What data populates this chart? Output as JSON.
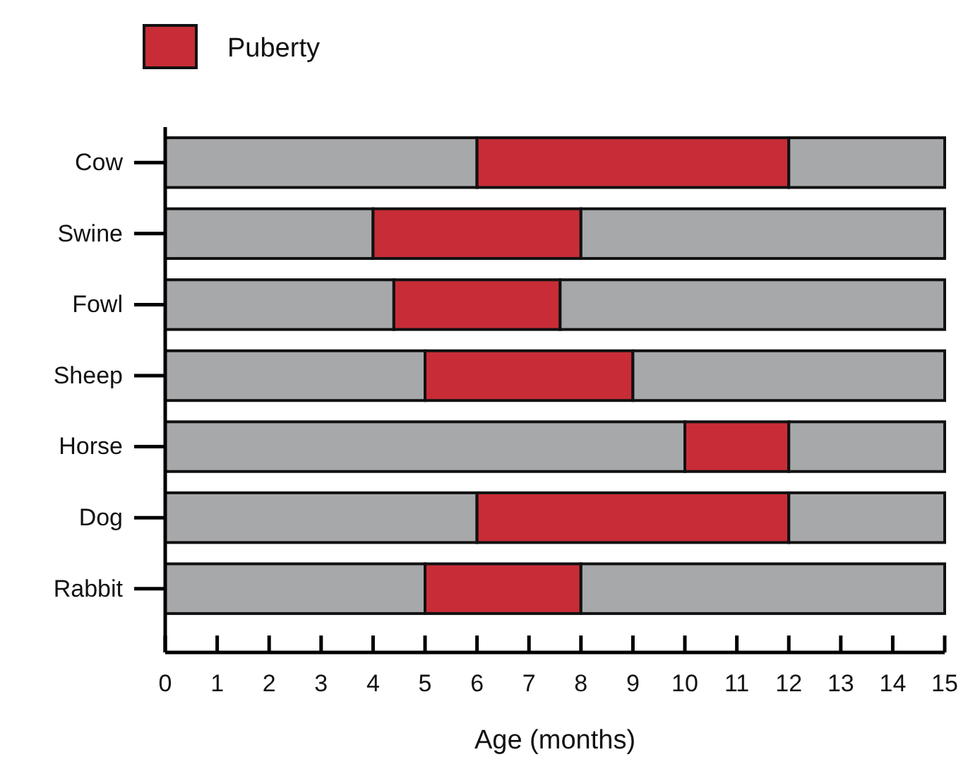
{
  "chart_data": {
    "type": "bar",
    "orientation": "horizontal",
    "stacked": true,
    "xlabel": "Age (months)",
    "categories": [
      "Cow",
      "Swine",
      "Fowl",
      "Sheep",
      "Horse",
      "Dog",
      "Rabbit"
    ],
    "series": [
      {
        "color": "#a7a8aa",
        "values": [
          6,
          4,
          4.4,
          5,
          10,
          6,
          5
        ]
      },
      {
        "name": "Puberty",
        "color": "#c82d37",
        "values": [
          6,
          4,
          3.2,
          4,
          2,
          6,
          3
        ]
      },
      {
        "color": "#a7a8aa",
        "values": [
          3,
          7,
          7.4,
          6,
          3,
          3,
          7
        ]
      }
    ],
    "xlim": [
      0,
      15
    ],
    "xticks": [
      0,
      1,
      2,
      3,
      4,
      5,
      6,
      7,
      8,
      9,
      10,
      11,
      12,
      13,
      14,
      15
    ],
    "legend": "top left",
    "grid": false
  }
}
